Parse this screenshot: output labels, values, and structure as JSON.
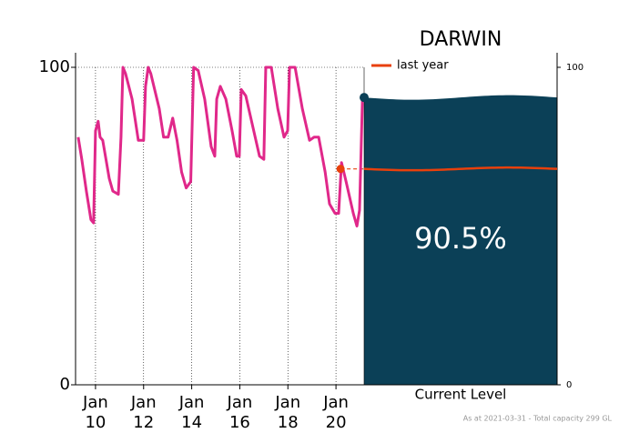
{
  "chart_data": {
    "type": "line",
    "title": "DARWIN",
    "xlim": [
      2009.17,
      2021.17
    ],
    "xticks": [
      {
        "value": 2010,
        "label": "Jan 10"
      },
      {
        "value": 2012,
        "label": "Jan 12"
      },
      {
        "value": 2014,
        "label": "Jan 14"
      },
      {
        "value": 2016,
        "label": "Jan 16"
      },
      {
        "value": 2018,
        "label": "Jan 18"
      },
      {
        "value": 2020,
        "label": "Jan 20"
      }
    ],
    "ylim": [
      0,
      100
    ],
    "yticks": [
      0,
      100
    ],
    "y2lim": [
      0,
      100
    ],
    "y2ticks": [
      0,
      100
    ],
    "grid": true,
    "x": [
      2009.28,
      2009.43,
      2009.62,
      2009.81,
      2009.92,
      2010.0,
      2010.11,
      2010.19,
      2010.3,
      2010.57,
      2010.72,
      2010.95,
      2011.06,
      2011.14,
      2011.25,
      2011.52,
      2011.7,
      2011.78,
      2012.0,
      2012.08,
      2012.19,
      2012.3,
      2012.65,
      2012.83,
      2013.02,
      2013.21,
      2013.39,
      2013.58,
      2013.77,
      2013.96,
      2014.08,
      2014.27,
      2014.54,
      2014.81,
      2014.96,
      2015.04,
      2015.19,
      2015.42,
      2015.68,
      2015.87,
      2015.98,
      2016.06,
      2016.25,
      2016.55,
      2016.82,
      2017.0,
      2017.08,
      2017.31,
      2017.58,
      2017.84,
      2017.99,
      2018.07,
      2018.3,
      2018.6,
      2018.9,
      2019.09,
      2019.28,
      2019.55,
      2019.73,
      2019.96,
      2020.11,
      2020.23,
      2020.42,
      2020.72,
      2020.87,
      2020.98,
      2021.1,
      2021.17
    ],
    "series": [
      {
        "color": "#e0288a",
        "values": [
          78,
          71,
          61,
          52,
          51,
          80,
          83,
          78,
          77,
          65,
          61,
          60,
          78,
          100,
          98,
          90,
          81,
          77,
          77,
          94,
          100,
          98,
          87,
          78,
          78,
          84,
          77,
          67,
          62,
          64,
          100,
          99,
          90,
          75,
          72,
          90,
          94,
          90,
          80,
          72,
          72,
          93,
          91,
          81,
          72,
          71,
          100,
          100,
          87,
          78,
          80,
          100,
          100,
          87,
          77,
          78,
          78,
          67,
          57,
          54,
          54,
          70,
          64,
          54,
          50,
          55,
          90,
          90.5
        ]
      }
    ],
    "last_year": {
      "name": "last year",
      "x": 2020.19,
      "value": 68,
      "color": "#e8400c"
    },
    "current": {
      "label": "Current Level",
      "value": 90.5,
      "value_label": "90.5%",
      "color": "#0b4057"
    },
    "note": "As at 2021-03-31 - Total capacity 299 GL"
  }
}
